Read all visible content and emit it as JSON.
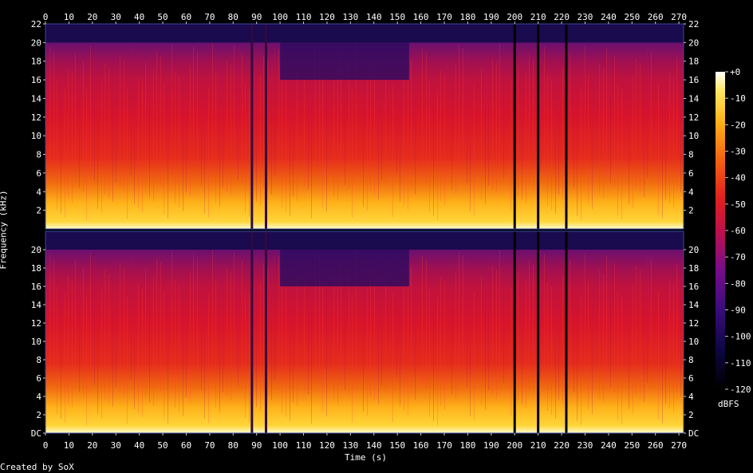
{
  "chart_data": {
    "type": "heatmap",
    "title": "",
    "xlabel": "Time (s)",
    "ylabel": "Frequency (kHz)",
    "credit": "Created by SoX",
    "xlim": [
      0,
      272
    ],
    "ylim": [
      0,
      22
    ],
    "x_ticks": [
      "0",
      "10",
      "20",
      "30",
      "40",
      "50",
      "60",
      "70",
      "80",
      "90",
      "100",
      "110",
      "120",
      "130",
      "140",
      "150",
      "160",
      "170",
      "180",
      "190",
      "200",
      "210",
      "220",
      "230",
      "240",
      "250",
      "260",
      "270"
    ],
    "y_ticks_top_channel": [
      "2",
      "4",
      "6",
      "8",
      "10",
      "12",
      "14",
      "16",
      "18",
      "20",
      "22"
    ],
    "y_ticks_bottom_channel": [
      "DC",
      "2",
      "4",
      "6",
      "8",
      "10",
      "12",
      "14",
      "16",
      "18",
      "20"
    ],
    "channels": [
      "channel 1",
      "channel 2"
    ],
    "colorbar": {
      "label": "dBFS",
      "ticks": [
        "+0",
        "-10",
        "-20",
        "-30",
        "-40",
        "-50",
        "-60",
        "-70",
        "-80",
        "-90",
        "-100",
        "-110",
        "-120"
      ],
      "range": [
        -120,
        0
      ]
    },
    "dropouts_s": [
      88,
      94,
      200,
      210,
      222
    ]
  }
}
